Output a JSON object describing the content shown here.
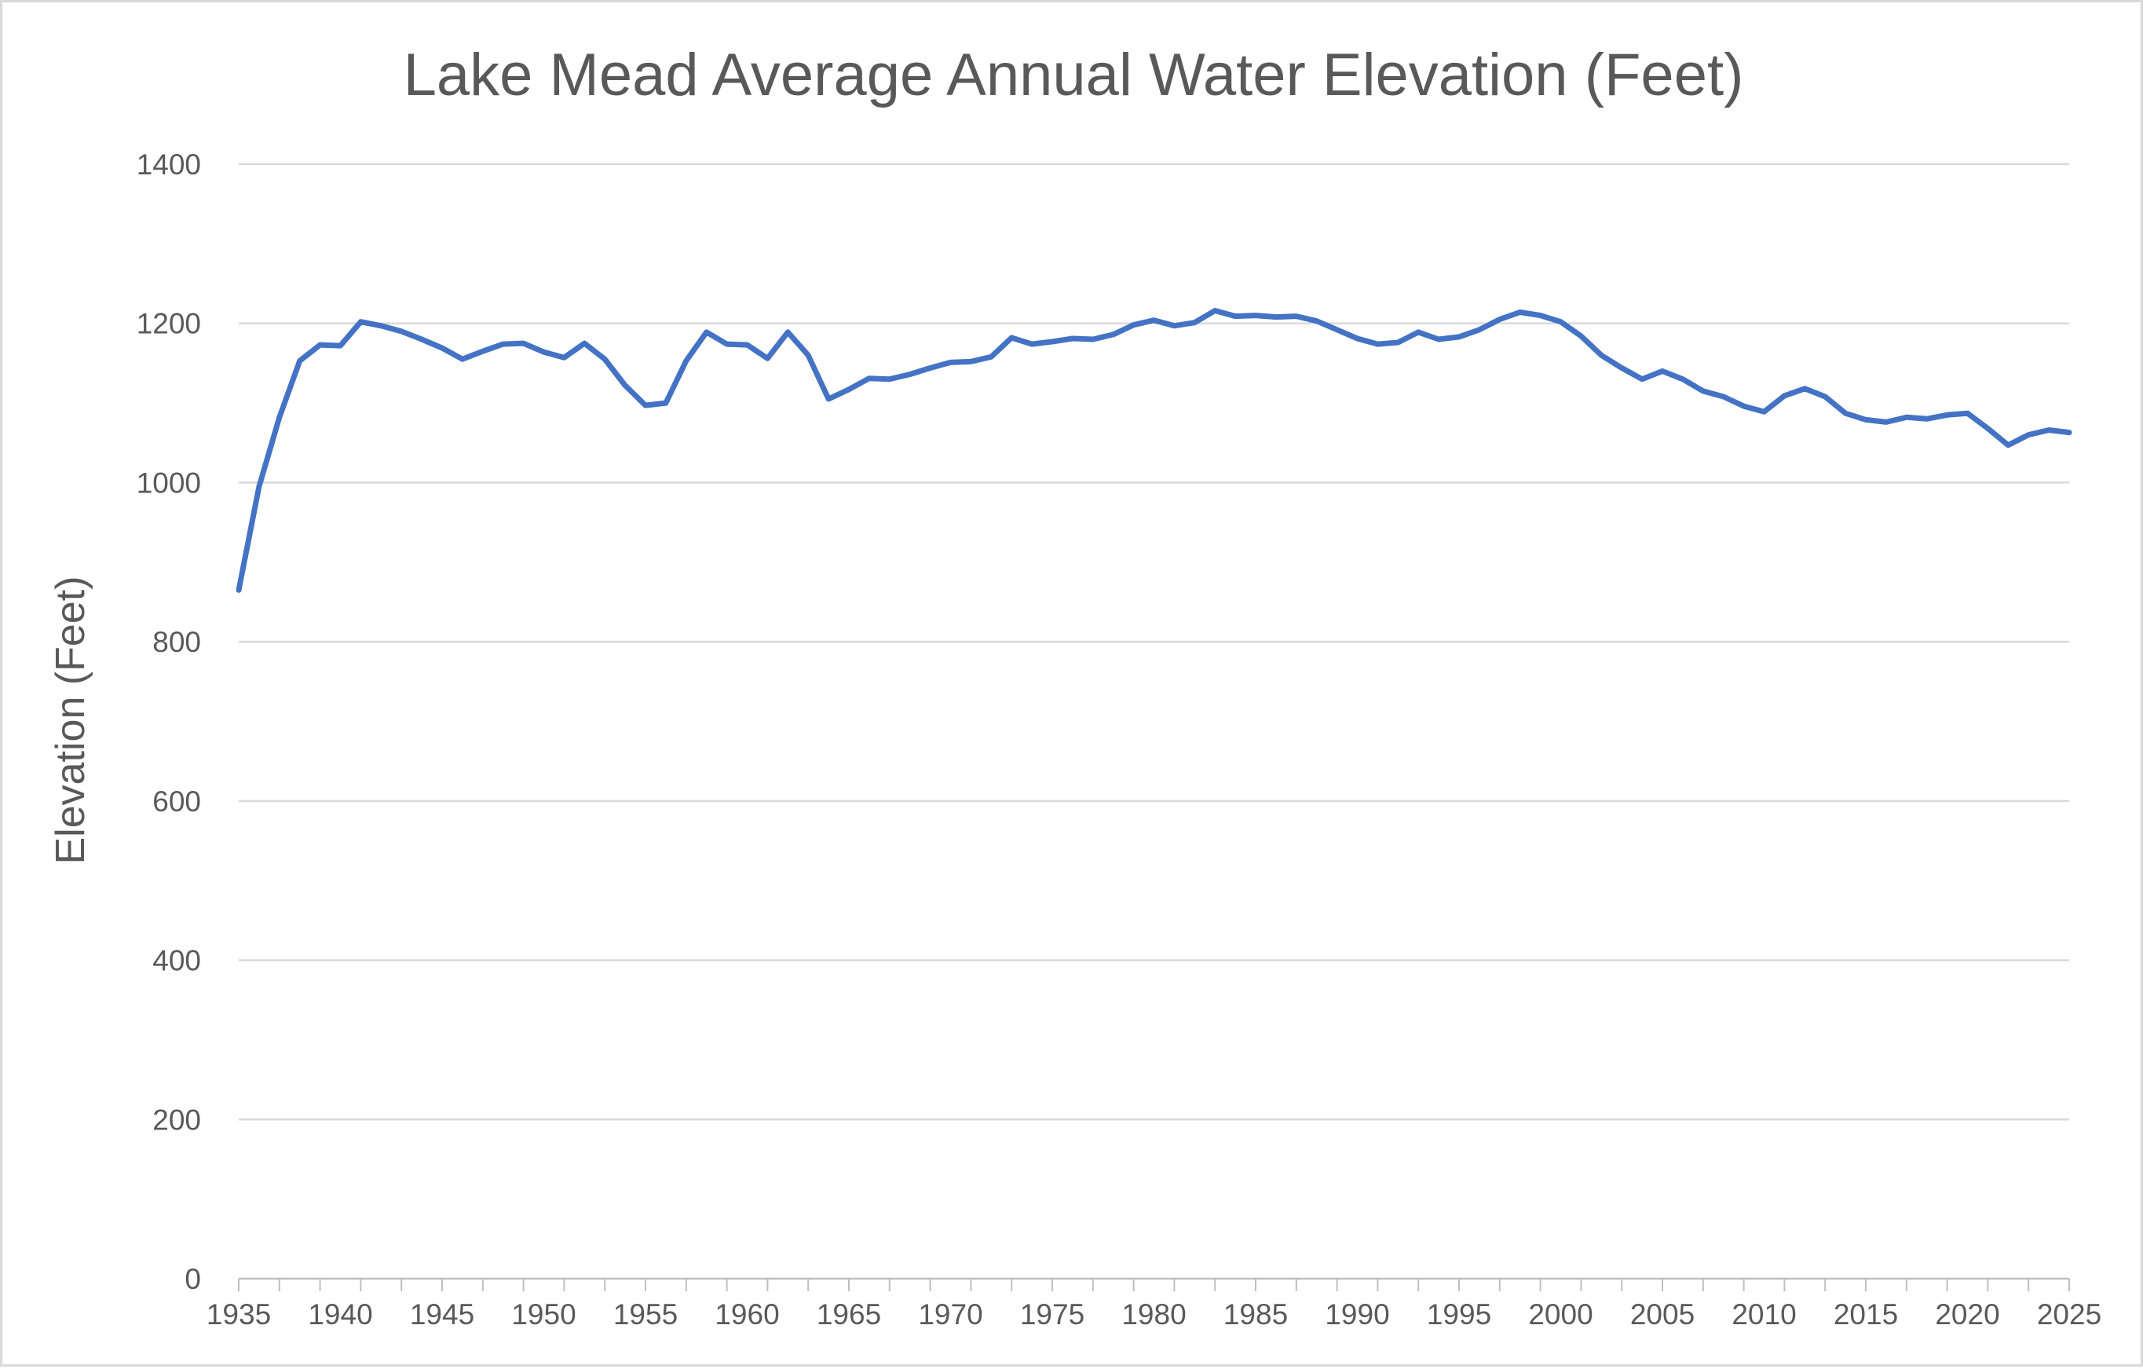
{
  "chart_data": {
    "type": "line",
    "title": "Lake Mead Average Annual Water  Elevation (Feet)",
    "xlabel": "",
    "ylabel": "Elevation (Feet)",
    "xlim": [
      1935,
      2025
    ],
    "ylim": [
      0,
      1400
    ],
    "y_ticks": [
      0,
      200,
      400,
      600,
      800,
      1000,
      1200,
      1400
    ],
    "x_ticks": [
      1935,
      1940,
      1945,
      1950,
      1955,
      1960,
      1965,
      1970,
      1975,
      1980,
      1985,
      1990,
      1995,
      2000,
      2005,
      2010,
      2015,
      2020,
      2025
    ],
    "grid": true,
    "legend": "none",
    "series": [
      {
        "color": "#4472c4",
        "x": [
          1935,
          1936,
          1937,
          1938,
          1939,
          1940,
          1941,
          1942,
          1943,
          1944,
          1945,
          1946,
          1947,
          1948,
          1949,
          1950,
          1951,
          1952,
          1953,
          1954,
          1955,
          1956,
          1957,
          1958,
          1959,
          1960,
          1961,
          1962,
          1963,
          1964,
          1965,
          1966,
          1967,
          1968,
          1969,
          1970,
          1971,
          1972,
          1973,
          1974,
          1975,
          1976,
          1977,
          1978,
          1979,
          1980,
          1981,
          1982,
          1983,
          1984,
          1985,
          1986,
          1987,
          1988,
          1989,
          1990,
          1991,
          1992,
          1993,
          1994,
          1995,
          1996,
          1997,
          1998,
          1999,
          2000,
          2001,
          2002,
          2003,
          2004,
          2005,
          2006,
          2007,
          2008,
          2009,
          2010,
          2011,
          2012,
          2013,
          2014,
          2015,
          2016,
          2017,
          2018,
          2019,
          2020,
          2021,
          2022,
          2023,
          2024,
          2025
        ],
        "values": [
          865,
          995,
          1082,
          1153,
          1173,
          1172,
          1202,
          1197,
          1190,
          1180,
          1169,
          1155,
          1165,
          1174,
          1175,
          1164,
          1157,
          1175,
          1155,
          1122,
          1097,
          1100,
          1153,
          1189,
          1174,
          1173,
          1156,
          1189,
          1160,
          1105,
          1117,
          1131,
          1130,
          1136,
          1144,
          1151,
          1152,
          1158,
          1182,
          1174,
          1177,
          1181,
          1180,
          1186,
          1198,
          1204,
          1197,
          1201,
          1216,
          1209,
          1210,
          1208,
          1209,
          1203,
          1192,
          1181,
          1174,
          1176,
          1189,
          1180,
          1183,
          1192,
          1205,
          1214,
          1210,
          1202,
          1184,
          1160,
          1144,
          1130,
          1140,
          1130,
          1115,
          1108,
          1096,
          1089,
          1109,
          1118,
          1108,
          1087,
          1079,
          1076,
          1082,
          1080,
          1085,
          1087,
          1068,
          1047,
          1060,
          1066,
          1063
        ]
      }
    ]
  }
}
